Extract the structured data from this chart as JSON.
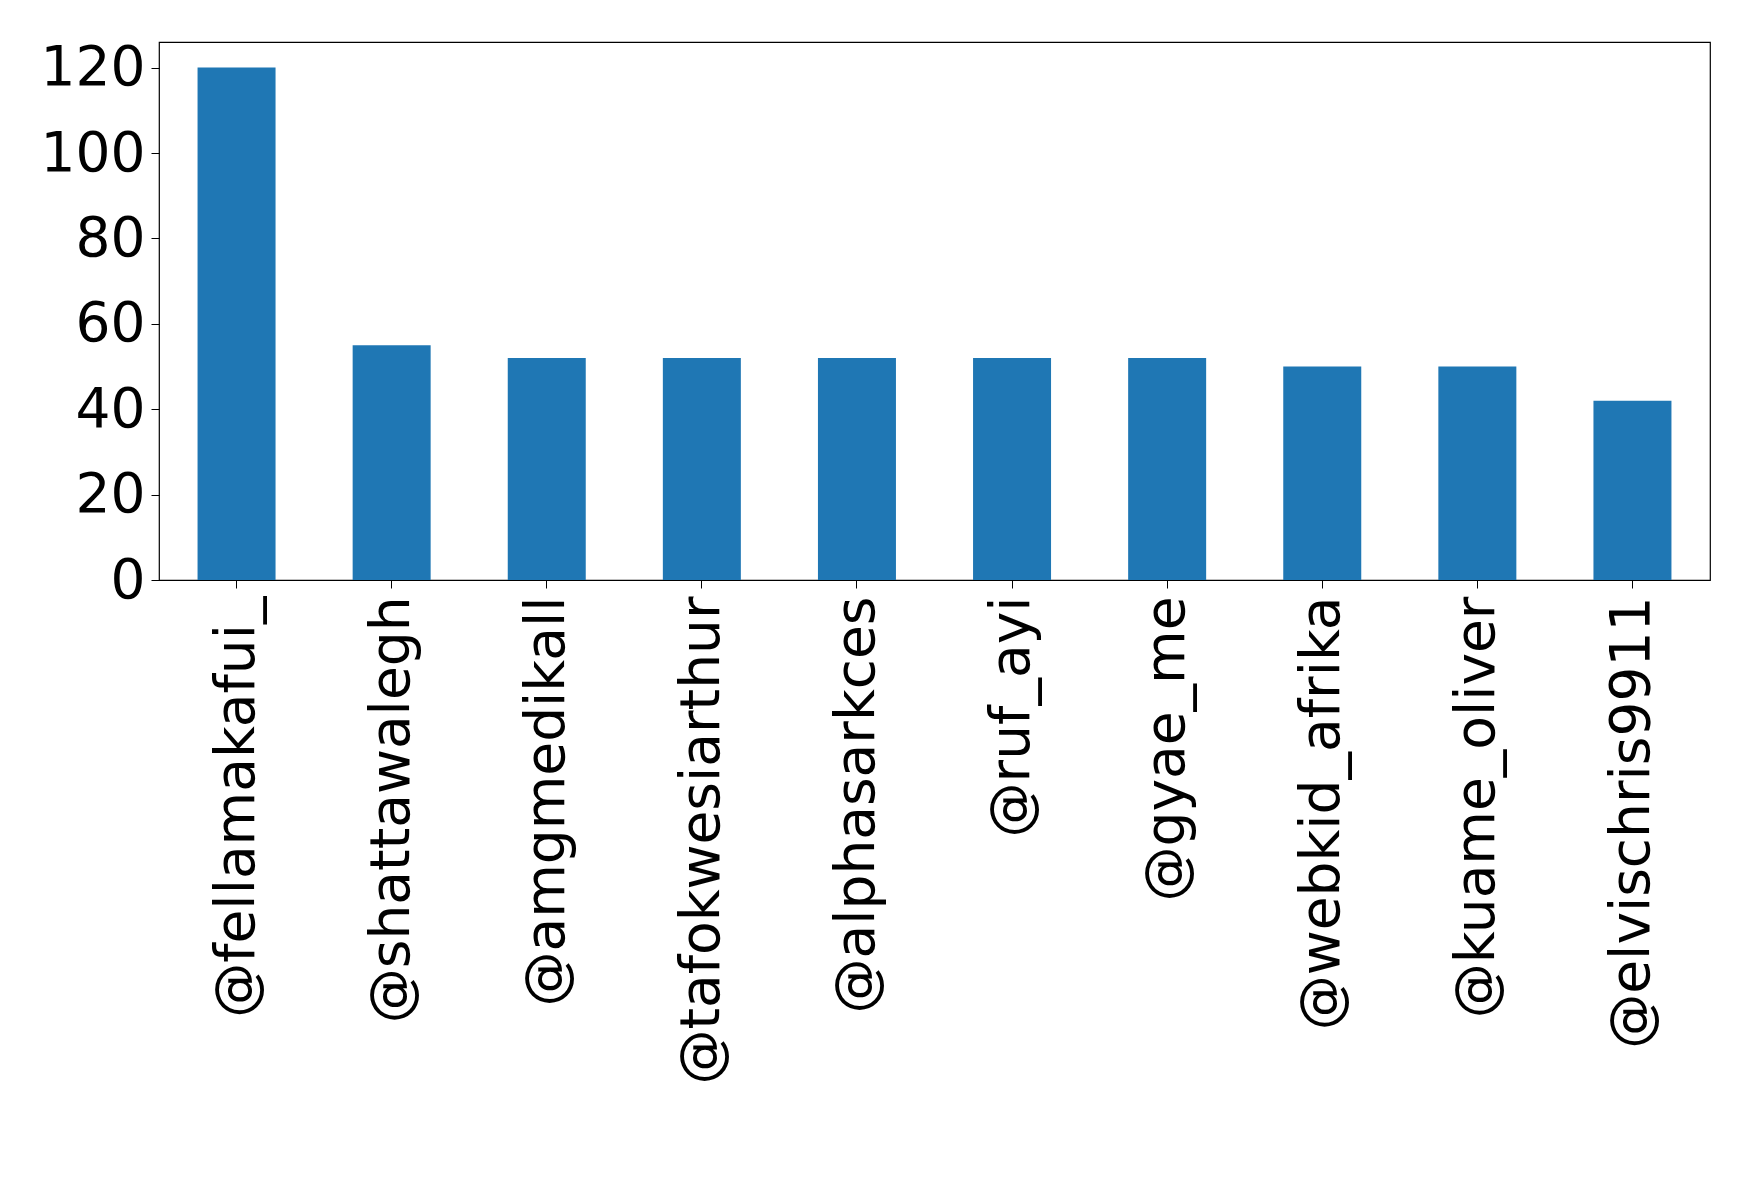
{
  "chart_data": {
    "type": "bar",
    "categories": [
      "@fellamakafui_",
      "@shattawalegh",
      "@amgmedikall",
      "@tafokwesiarthur",
      "@alphasarkces",
      "@ruf_ayi",
      "@gyae_me",
      "@webkid_afrika",
      "@kuame_oliver",
      "@elvischris9911"
    ],
    "values": [
      120,
      55,
      52,
      52,
      52,
      52,
      52,
      50,
      50,
      42
    ],
    "color": "#1f77b4",
    "ylim": [
      0,
      126
    ],
    "yticks": [
      0,
      20,
      40,
      60,
      80,
      100,
      120
    ],
    "grid": false
  }
}
